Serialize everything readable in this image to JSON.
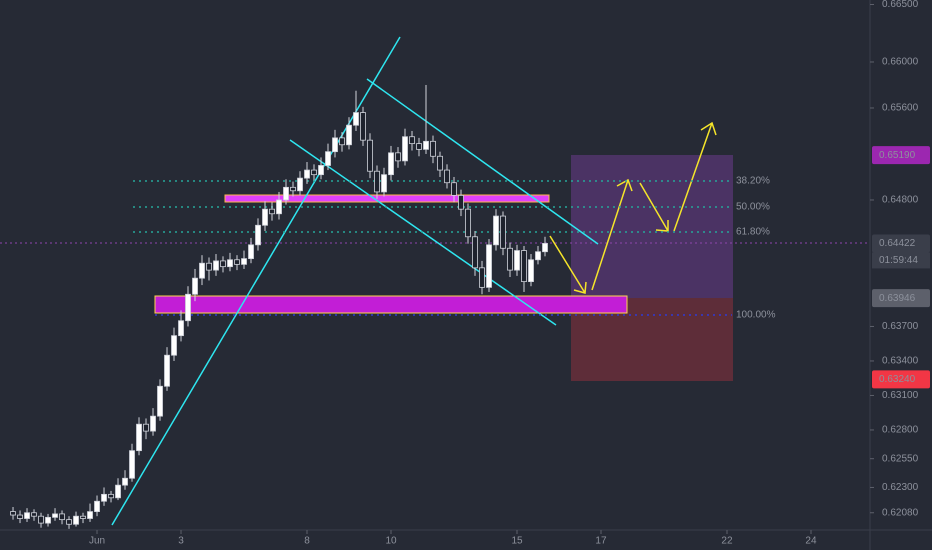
{
  "chart_data": {
    "type": "candlestick",
    "open": [
      0.6209,
      0.6206,
      0.6203,
      0.6208,
      0.6205,
      0.6199,
      0.6204,
      0.6207,
      0.6202,
      0.6198,
      0.6205,
      0.6203,
      0.6209,
      0.6218,
      0.6224,
      0.6221,
      0.6232,
      0.6238,
      0.6262,
      0.6285,
      0.6279,
      0.6292,
      0.6318,
      0.6345,
      0.6362,
      0.6375,
      0.6398,
      0.6412,
      0.6425,
      0.6419,
      0.6427,
      0.6422,
      0.6428,
      0.6424,
      0.6429,
      0.6441,
      0.6458,
      0.6472,
      0.6468,
      0.648,
      0.6491,
      0.6488,
      0.6499,
      0.6506,
      0.6502,
      0.651,
      0.6522,
      0.6534,
      0.6528,
      0.6545,
      0.6556,
      0.6532,
      0.6505,
      0.6487,
      0.6502,
      0.6521,
      0.6514,
      0.6535,
      0.6529,
      0.6524,
      0.6531,
      0.6518,
      0.6506,
      0.6495,
      0.6484,
      0.6472,
      0.6448,
      0.6421,
      0.6404,
      0.6441,
      0.6466,
      0.6438,
      0.6419,
      0.6436,
      0.6409,
      0.6428,
      0.6435
    ],
    "high": [
      0.6213,
      0.621,
      0.6212,
      0.6211,
      0.6208,
      0.6207,
      0.6212,
      0.621,
      0.6205,
      0.6209,
      0.6208,
      0.6216,
      0.6223,
      0.623,
      0.6227,
      0.6238,
      0.6245,
      0.6268,
      0.6291,
      0.629,
      0.6299,
      0.6324,
      0.6352,
      0.6369,
      0.6384,
      0.6405,
      0.642,
      0.6432,
      0.643,
      0.6433,
      0.6431,
      0.6434,
      0.6432,
      0.6436,
      0.6447,
      0.6464,
      0.6479,
      0.6478,
      0.6487,
      0.6498,
      0.6496,
      0.6505,
      0.6513,
      0.6511,
      0.6517,
      0.6529,
      0.6541,
      0.6539,
      0.6552,
      0.6575,
      0.6561,
      0.6538,
      0.651,
      0.6508,
      0.6527,
      0.6526,
      0.6542,
      0.654,
      0.6534,
      0.658,
      0.6536,
      0.6522,
      0.6511,
      0.65,
      0.6489,
      0.6477,
      0.6453,
      0.6427,
      0.6446,
      0.6472,
      0.647,
      0.6443,
      0.6441,
      0.644,
      0.6433,
      0.644,
      0.6448
    ],
    "low": [
      0.6202,
      0.6199,
      0.62,
      0.6201,
      0.6195,
      0.6196,
      0.6201,
      0.6198,
      0.6194,
      0.6196,
      0.6199,
      0.62,
      0.6205,
      0.6214,
      0.6217,
      0.6219,
      0.6228,
      0.6235,
      0.6258,
      0.6272,
      0.6275,
      0.6288,
      0.6314,
      0.634,
      0.6357,
      0.637,
      0.6392,
      0.6406,
      0.641,
      0.6414,
      0.6417,
      0.6418,
      0.6419,
      0.642,
      0.6425,
      0.6436,
      0.6453,
      0.6462,
      0.6463,
      0.6476,
      0.6483,
      0.6484,
      0.6494,
      0.6497,
      0.6498,
      0.6506,
      0.6517,
      0.6522,
      0.6524,
      0.654,
      0.6527,
      0.6499,
      0.6481,
      0.6483,
      0.6497,
      0.6508,
      0.651,
      0.6523,
      0.6518,
      0.652,
      0.6512,
      0.65,
      0.649,
      0.6478,
      0.6466,
      0.6442,
      0.6414,
      0.6398,
      0.64,
      0.6436,
      0.6432,
      0.6413,
      0.6414,
      0.64,
      0.6405,
      0.6424,
      0.6431
    ],
    "close": [
      0.6206,
      0.6203,
      0.6208,
      0.6205,
      0.6199,
      0.6204,
      0.6207,
      0.6202,
      0.6198,
      0.6205,
      0.6203,
      0.6209,
      0.6218,
      0.6224,
      0.6221,
      0.6232,
      0.6238,
      0.6262,
      0.6285,
      0.6279,
      0.6292,
      0.6318,
      0.6345,
      0.6362,
      0.6375,
      0.6398,
      0.6412,
      0.6425,
      0.6419,
      0.6427,
      0.6422,
      0.6428,
      0.6424,
      0.6429,
      0.6441,
      0.6458,
      0.6472,
      0.6468,
      0.648,
      0.6491,
      0.6488,
      0.6499,
      0.6506,
      0.6502,
      0.651,
      0.6522,
      0.6534,
      0.6528,
      0.6545,
      0.6556,
      0.6532,
      0.6505,
      0.6487,
      0.6502,
      0.6521,
      0.6514,
      0.6535,
      0.6529,
      0.6524,
      0.6531,
      0.6518,
      0.6506,
      0.6495,
      0.6484,
      0.6472,
      0.6448,
      0.6421,
      0.6404,
      0.6441,
      0.6466,
      0.6438,
      0.6419,
      0.6436,
      0.6409,
      0.6428,
      0.6435,
      0.64422
    ],
    "up_color": "#ffffff",
    "down_color": "#1e222d",
    "xlim": [
      -1.86,
      122.43
    ],
    "xticks": [
      {
        "value": 12,
        "label": "Jun"
      },
      {
        "value": 24,
        "label": "3"
      },
      {
        "value": 42,
        "label": "8"
      },
      {
        "value": 54,
        "label": "10"
      },
      {
        "value": 72,
        "label": "15"
      },
      {
        "value": 84,
        "label": "17"
      },
      {
        "value": 102,
        "label": "22"
      },
      {
        "value": 114,
        "label": "24"
      }
    ],
    "ylim": [
      0.6193,
      0.66539
    ],
    "yticks": [
      {
        "value": 0.665,
        "label": "0.66500"
      },
      {
        "value": 0.66,
        "label": "0.66000"
      },
      {
        "value": 0.656,
        "label": "0.65600"
      },
      {
        "value": 0.648,
        "label": "0.64800"
      },
      {
        "value": 0.637,
        "label": "0.63700"
      },
      {
        "value": 0.634,
        "label": "0.63400"
      },
      {
        "value": 0.631,
        "label": "0.63100"
      },
      {
        "value": 0.628,
        "label": "0.62800"
      },
      {
        "value": 0.6255,
        "label": "0.62550"
      },
      {
        "value": 0.623,
        "label": "0.62300"
      },
      {
        "value": 0.6208,
        "label": "0.62080"
      }
    ],
    "price_labels": [
      {
        "value": 0.6519,
        "label": "0.65190",
        "color": "#9c27b0"
      },
      {
        "value": 0.64422,
        "label": "0.64422",
        "color": "#3a3e4a"
      },
      {
        "value": 0.63946,
        "label": "0.63946",
        "color": "#5d606b"
      },
      {
        "value": 0.6324,
        "label": "0.63240",
        "color": "#f23645"
      }
    ],
    "countdown": "01:59:44",
    "fib_levels": [
      {
        "price": 0.64965,
        "label": "38.20%",
        "color": "#26a69a"
      },
      {
        "price": 0.64739,
        "label": "50.00%",
        "color": "#26a69a"
      },
      {
        "price": 0.64522,
        "label": "61.80%",
        "color": "#26a69a"
      },
      {
        "price": 0.638,
        "label": "100.00%",
        "color": "#2f3bd6"
      }
    ]
  }
}
